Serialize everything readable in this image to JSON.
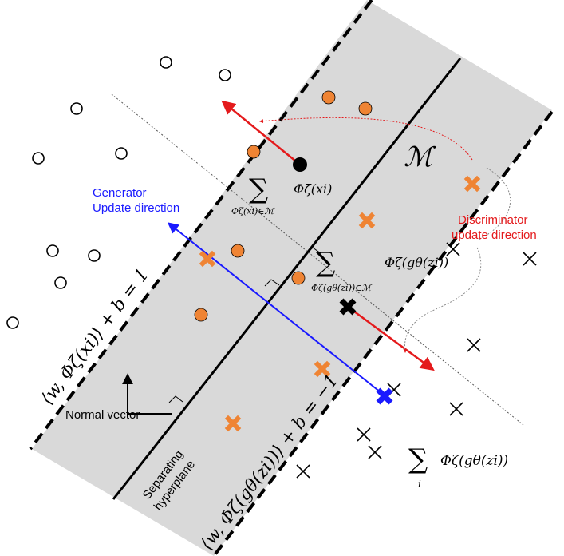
{
  "labels": {
    "generator_line1": "Generator",
    "generator_line2": "Update  direction",
    "discriminator_line1": "Discriminator",
    "discriminator_line2": "update direction",
    "normal_vector": "Normal vector",
    "separating_line1": "Separating",
    "separating_line2": "hyperplane"
  },
  "math": {
    "manifold": "ℳ",
    "phi_xi": "Φζ(xi)",
    "sum_symbol": "∑",
    "sum_x_sub": "Φζ(xi)∈ℳ",
    "phi_g": "Φζ(gθ(zi))",
    "sum_g_sub": "Φζ(gθ(zi))∈ℳ",
    "sum_i_expr": "Φζ(gθ(zi))",
    "sum_i_sub": "i",
    "plus_margin": "⟨w, Φζ(xi)⟩ + b = 1",
    "minus_margin": "⟨w, Φζ(gθ(zi))⟩ + b = −1"
  },
  "colors": {
    "generator": "#1a1aff",
    "discriminator": "#e41a1c",
    "band": "#d9d9d9",
    "point": "#ef8434"
  }
}
